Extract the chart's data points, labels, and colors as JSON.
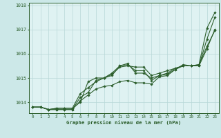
{
  "title": "Graphe pression niveau de la mer (hPa)",
  "bg_color": "#cce8e8",
  "plot_bg_color": "#dff2f2",
  "grid_color": "#b8d8d8",
  "line_color": "#2d5f2d",
  "xlim": [
    -0.5,
    23.5
  ],
  "ylim": [
    1013.55,
    1018.1
  ],
  "yticks": [
    1014,
    1015,
    1016,
    1017,
    1018
  ],
  "xticks": [
    0,
    1,
    2,
    3,
    4,
    5,
    6,
    7,
    8,
    9,
    10,
    11,
    12,
    13,
    14,
    15,
    16,
    17,
    18,
    19,
    20,
    21,
    22,
    23
  ],
  "series": [
    [
      1013.8,
      1013.8,
      1013.7,
      1013.7,
      1013.7,
      1013.7,
      1014.05,
      1014.3,
      1014.55,
      1014.65,
      1014.7,
      1014.85,
      1014.9,
      1014.8,
      1014.8,
      1014.75,
      1015.05,
      1015.1,
      1015.35,
      1015.55,
      1015.5,
      1015.55,
      1017.05,
      1017.7
    ],
    [
      1013.8,
      1013.8,
      1013.7,
      1013.75,
      1013.75,
      1013.75,
      1014.0,
      1014.85,
      1015.0,
      1015.0,
      1015.2,
      1015.5,
      1015.6,
      1015.2,
      1015.2,
      1015.0,
      1015.1,
      1015.15,
      1015.35,
      1015.5,
      1015.5,
      1015.55,
      1016.3,
      1016.95
    ],
    [
      1013.8,
      1013.8,
      1013.7,
      1013.75,
      1013.75,
      1013.75,
      1014.35,
      1014.6,
      1014.85,
      1015.0,
      1015.15,
      1015.45,
      1015.5,
      1015.45,
      1015.45,
      1015.1,
      1015.2,
      1015.3,
      1015.4,
      1015.5,
      1015.5,
      1015.5,
      1016.2,
      1017.0
    ],
    [
      1013.8,
      1013.8,
      1013.7,
      1013.7,
      1013.7,
      1013.7,
      1014.2,
      1014.4,
      1014.9,
      1015.0,
      1015.1,
      1015.5,
      1015.55,
      1015.3,
      1015.3,
      1014.9,
      1015.1,
      1015.2,
      1015.4,
      1015.5,
      1015.5,
      1015.5,
      1016.6,
      1017.5
    ]
  ]
}
